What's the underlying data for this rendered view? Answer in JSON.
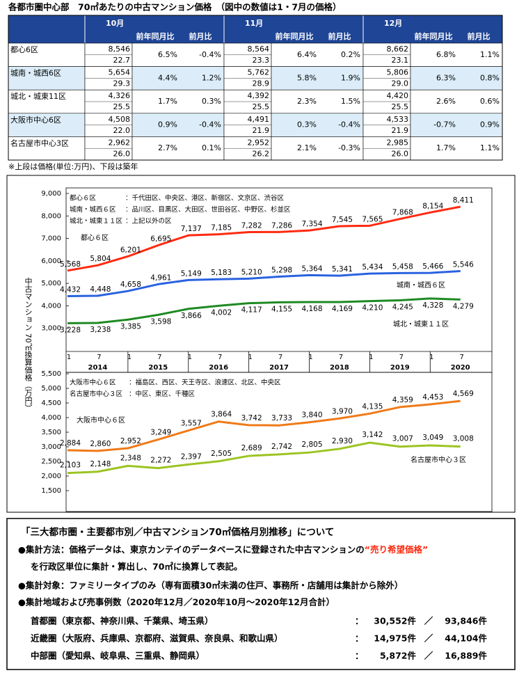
{
  "title": "各都市圏中心部　70㎡あたりの中古マンション価格　（図中の数値は1・7月の価格）",
  "table": {
    "months": [
      "10月",
      "11月",
      "12月"
    ],
    "subheaders": [
      "前年同月比",
      "前月比"
    ],
    "rows": [
      {
        "label": "都心6区",
        "cells": [
          {
            "price": "8,546",
            "age": "22.7",
            "yoy": "6.5%",
            "mom": "-0.4%"
          },
          {
            "price": "8,564",
            "age": "23.3",
            "yoy": "6.4%",
            "mom": "0.2%"
          },
          {
            "price": "8,662",
            "age": "23.1",
            "yoy": "6.8%",
            "mom": "1.1%"
          }
        ]
      },
      {
        "label": "城南・城西6区",
        "cells": [
          {
            "price": "5,654",
            "age": "29.3",
            "yoy": "4.4%",
            "mom": "1.2%"
          },
          {
            "price": "5,762",
            "age": "28.9",
            "yoy": "5.8%",
            "mom": "1.9%"
          },
          {
            "price": "5,806",
            "age": "29.0",
            "yoy": "6.3%",
            "mom": "0.8%"
          }
        ]
      },
      {
        "label": "城北・城東11区",
        "cells": [
          {
            "price": "4,326",
            "age": "25.5",
            "yoy": "1.7%",
            "mom": "0.3%"
          },
          {
            "price": "4,392",
            "age": "25.5",
            "yoy": "2.3%",
            "mom": "1.5%"
          },
          {
            "price": "4,420",
            "age": "25.5",
            "yoy": "2.6%",
            "mom": "0.6%"
          }
        ]
      },
      {
        "label": "大阪市中心6区",
        "cells": [
          {
            "price": "4,508",
            "age": "22.0",
            "yoy": "0.9%",
            "mom": "-0.4%"
          },
          {
            "price": "4,491",
            "age": "21.9",
            "yoy": "0.3%",
            "mom": "-0.4%"
          },
          {
            "price": "4,533",
            "age": "21.9",
            "yoy": "-0.7%",
            "mom": "0.9%"
          }
        ]
      },
      {
        "label": "名古屋市中心3区",
        "cells": [
          {
            "price": "2,962",
            "age": "26.0",
            "yoy": "2.7%",
            "mom": "0.1%"
          },
          {
            "price": "2,952",
            "age": "26.2",
            "yoy": "2.1%",
            "mom": "-0.3%"
          },
          {
            "price": "2,985",
            "age": "26.0",
            "yoy": "1.7%",
            "mom": "1.1%"
          }
        ]
      }
    ]
  },
  "table_note": "※上段は価格(単位:万円)、下段は築年",
  "y_axis_label": "中古マンション 70㎡換算価格（万円）",
  "charts": [
    {
      "type": "line",
      "legend": [
        {
          "region": "都心６区",
          "areas": "：千代田区、中央区、港区、新宿区、文京区、渋谷区"
        },
        {
          "region": "城南・城西６区",
          "areas": "：品川区、目黒区、大田区、世田谷区、中野区、杉並区"
        },
        {
          "region": "城北・城東１１区",
          "areas": "：上記以外の区"
        }
      ],
      "categories": [
        "1",
        "7",
        "1",
        "7",
        "1",
        "7",
        "1",
        "7",
        "1",
        "7",
        "1",
        "7",
        "1",
        "7"
      ],
      "years": [
        "2014",
        "2015",
        "2016",
        "2017",
        "2018",
        "2019",
        "2020"
      ],
      "ylim": [
        2000,
        9000
      ],
      "yticks": [
        {
          "value": 3000,
          "label": "3,000"
        },
        {
          "value": 4000,
          "label": "4,000"
        },
        {
          "value": 5000,
          "label": "5,000"
        },
        {
          "value": 6000,
          "label": "6,000"
        },
        {
          "value": 7000,
          "label": "7,000"
        },
        {
          "value": 8000,
          "label": "8,000"
        },
        {
          "value": 9000,
          "label": "9,000"
        }
      ],
      "series": [
        {
          "name": "都心６区",
          "color": "#ff2a10",
          "values": [
            5568,
            5804,
            6201,
            6695,
            7137,
            7185,
            7282,
            7286,
            7354,
            7545,
            7565,
            7868,
            8154,
            8411
          ],
          "value_labels": [
            "5,568",
            "5,804",
            "6,201",
            "6,695",
            "7,137",
            "7,185",
            "7,282",
            "7,286",
            "7,354",
            "7,545",
            "7,565",
            "7,868",
            "8,154",
            "8,411"
          ]
        },
        {
          "name": "城南・城西６区",
          "color": "#2a62e0",
          "values": [
            4432,
            4448,
            4658,
            4961,
            5149,
            5183,
            5210,
            5298,
            5364,
            5341,
            5434,
            5458,
            5466,
            5546
          ],
          "value_labels": [
            "4,432",
            "4,448",
            "4,658",
            "4,961",
            "5,149",
            "5,183",
            "5,210",
            "5,298",
            "5,364",
            "5,341",
            "5,434",
            "5,458",
            "5,466",
            "5,546"
          ]
        },
        {
          "name": "城北・城東１１区",
          "color": "#1e8a22",
          "values": [
            3228,
            3238,
            3385,
            3598,
            3866,
            4002,
            4117,
            4155,
            4168,
            4169,
            4210,
            4245,
            4328,
            4279
          ],
          "value_labels": [
            "3,228",
            "3,238",
            "3,385",
            "3,598",
            "3,866",
            "4,002",
            "4,117",
            "4,155",
            "4,168",
            "4,169",
            "4,210",
            "4,245",
            "4,328",
            "4,279"
          ]
        }
      ]
    },
    {
      "type": "line",
      "legend": [
        {
          "region": "大阪市中心６区",
          "areas": "：福島区、西区、天王寺区、浪速区、北区、中央区"
        },
        {
          "region": "名古屋市中心３区",
          "areas": "：中区、東区、千種区"
        }
      ],
      "ylim": [
        1500,
        5500
      ],
      "yticks": [
        {
          "value": 1500,
          "label": "1,500"
        },
        {
          "value": 2000,
          "label": "2,000"
        },
        {
          "value": 2500,
          "label": "2,500"
        },
        {
          "value": 3000,
          "label": "3,000"
        },
        {
          "value": 3500,
          "label": "3,500"
        },
        {
          "value": 4000,
          "label": "4,000"
        },
        {
          "value": 4500,
          "label": "4,500"
        },
        {
          "value": 5000,
          "label": "5,000"
        },
        {
          "value": 5500,
          "label": "5,500"
        }
      ],
      "series": [
        {
          "name": "大阪市中心６区",
          "color": "#f07a18",
          "values": [
            2884,
            2860,
            2952,
            3249,
            3557,
            3864,
            3742,
            3733,
            3840,
            3970,
            4135,
            4359,
            4453,
            4569
          ],
          "value_labels": [
            "2,884",
            "2,860",
            "2,952",
            "3,249",
            "3,557",
            "3,864",
            "3,742",
            "3,733",
            "3,840",
            "3,970",
            "4,135",
            "4,359",
            "4,453",
            "4,569"
          ]
        },
        {
          "name": "名古屋市中心３区",
          "color": "#9cc422",
          "values": [
            2103,
            2148,
            2348,
            2272,
            2397,
            2505,
            2689,
            2742,
            2805,
            2930,
            3142,
            3007,
            3049,
            3008
          ],
          "value_labels": [
            "2,103",
            "2,148",
            "2,348",
            "2,272",
            "2,397",
            "2,505",
            "2,689",
            "2,742",
            "2,805",
            "2,930",
            "3,142",
            "3,007",
            "3,049",
            "3,008"
          ]
        }
      ]
    }
  ],
  "notes": {
    "title": "「三大都市圏・主要都市別／中古マンション70㎡価格月別推移」について",
    "method": [
      "●集計方法：価格データは、東京カンテイのデータベースに登録された中古マンションの",
      "“売り希望価格”"
    ],
    "method_cont": "を行政区単位に集計・算出し、70㎡に換算して表記。",
    "target": "●集計対象：ファミリータイプのみ（専有面積30㎡未満の住戸、事務所・店舗用は集計から除外）",
    "area": "●集計地域および売事例数（2020年12月／2020年10月～2020年12月合計）",
    "regions": [
      {
        "name": "首都圏（東京都、神奈川県、千葉県、埼玉県）",
        "sep": "：",
        "count": "30,552件",
        "slash": "／",
        "total": "93,846件"
      },
      {
        "name": "近畿圏（大阪府、兵庫県、京都府、滋賀県、奈良県、和歌山県）",
        "sep": "：",
        "count": "14,975件",
        "slash": "／",
        "total": "44,104件"
      },
      {
        "name": "中部圏（愛知県、岐阜県、三重県、静岡県）",
        "sep": "：",
        "count": "5,872件",
        "slash": "／",
        "total": "16,889件"
      }
    ]
  }
}
